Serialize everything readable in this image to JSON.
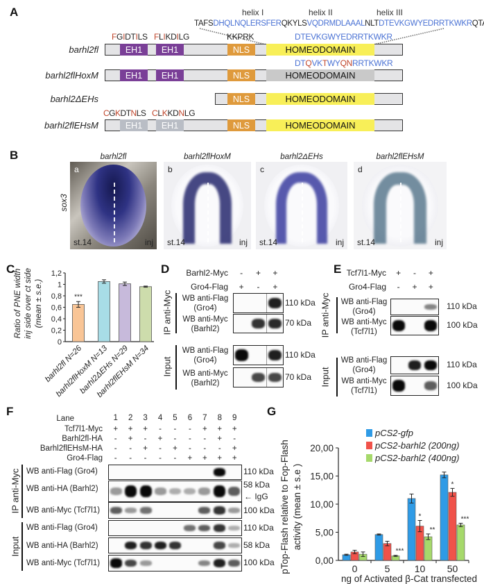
{
  "colors": {
    "black": "#222222",
    "blue": "#4a72d4",
    "red": "#c0452b",
    "eh1": "#7a3f97",
    "eh1_mut": "#b9bdc5",
    "nls": "#df9a3c",
    "hd": "#f8ef58",
    "hd_mut": "#c9c9c9"
  },
  "panel_a": {
    "label": "A",
    "helix_labels": [
      "helix I",
      "helix II",
      "helix III"
    ],
    "sequence": [
      {
        "t": "TAFS",
        "c": "black"
      },
      {
        "t": "DHQLNQLERSFER",
        "c": "blue"
      },
      {
        "t": "QKYLS",
        "c": "black"
      },
      {
        "t": "VQDRMDLAAAL",
        "c": "blue"
      },
      {
        "t": "NLT",
        "c": "black"
      },
      {
        "t": "DTEVKGWYEDRRTKWKR",
        "c": "blue"
      },
      {
        "t": "QTA",
        "c": "black"
      }
    ],
    "eh1_wt_1": [
      {
        "t": "F",
        "c": "red"
      },
      {
        "t": "G",
        "c": "black"
      },
      {
        "t": "I",
        "c": "red"
      },
      {
        "t": "DT",
        "c": "black"
      },
      {
        "t": "I",
        "c": "red"
      },
      {
        "t": "LS",
        "c": "black"
      }
    ],
    "eh1_wt_2": [
      {
        "t": "F",
        "c": "red"
      },
      {
        "t": "L",
        "c": "black"
      },
      {
        "t": "I",
        "c": "red"
      },
      {
        "t": "KD",
        "c": "black"
      },
      {
        "t": "I",
        "c": "red"
      },
      {
        "t": "LG",
        "c": "black"
      }
    ],
    "nls_seq": "KKPRK",
    "helix3_wt": [
      {
        "t": "DTEVKGWYEDRRTKWKR",
        "c": "blue"
      }
    ],
    "helix3_mut": [
      {
        "t": "DT",
        "c": "blue"
      },
      {
        "t": "Q",
        "c": "red"
      },
      {
        "t": "VK",
        "c": "blue"
      },
      {
        "t": "T",
        "c": "red"
      },
      {
        "t": "WY",
        "c": "blue"
      },
      {
        "t": "QN",
        "c": "red"
      },
      {
        "t": "RRTKWKR",
        "c": "blue"
      }
    ],
    "eh1_mut_1": [
      {
        "t": "C",
        "c": "red"
      },
      {
        "t": "G",
        "c": "black"
      },
      {
        "t": "K",
        "c": "red"
      },
      {
        "t": "DT",
        "c": "black"
      },
      {
        "t": "N",
        "c": "red"
      },
      {
        "t": "LS",
        "c": "black"
      }
    ],
    "eh1_mut_2": [
      {
        "t": "C",
        "c": "red"
      },
      {
        "t": "L",
        "c": "black"
      },
      {
        "t": "K",
        "c": "red"
      },
      {
        "t": "KD",
        "c": "black"
      },
      {
        "t": "N",
        "c": "red"
      },
      {
        "t": "LG",
        "c": "black"
      }
    ],
    "domain_labels": {
      "eh1": "EH1",
      "nls": "NLS",
      "hd": "HOMEODOMAIN"
    },
    "constructs": [
      {
        "name": "barhl2fl"
      },
      {
        "name": "barhl2flHoxM"
      },
      {
        "name": "barhl2ΔEHs"
      },
      {
        "name": "barhl2flEHsM"
      }
    ]
  },
  "panel_b": {
    "label": "B",
    "marker": "sox3",
    "images": [
      {
        "title": "barhl2fl",
        "letter": "a",
        "stage": "st.14",
        "side": "inj"
      },
      {
        "title": "barhl2flHoxM",
        "letter": "b",
        "stage": "st.14",
        "side": "inj"
      },
      {
        "title": "barhl2ΔEHs",
        "letter": "c",
        "stage": "st.14",
        "side": "inj"
      },
      {
        "title": "barhl2flEHsM",
        "letter": "d",
        "stage": "st.14",
        "side": "inj"
      }
    ]
  },
  "panel_c": {
    "label": "C"
  },
  "panel_d": {
    "label": "D",
    "rows": [
      {
        "name": "Barhl2-Myc",
        "signs": [
          "-",
          "+",
          "+"
        ]
      },
      {
        "name": "Gro4-Flag",
        "signs": [
          "+",
          "-",
          "+"
        ]
      }
    ],
    "ip_label": "IP anti-Myc",
    "input_label": "Input",
    "blots": [
      {
        "l1": "WB anti-Flag",
        "l2": "(Gro4)",
        "kda": "110 kDa",
        "bands": [
          0,
          0,
          0.9
        ]
      },
      {
        "l1": "WB anti-Myc",
        "l2": "(Barhl2)",
        "kda": "70 kDa",
        "bands": [
          0,
          0.8,
          0.85
        ]
      },
      {
        "l1": "WB anti-Flag",
        "l2": "(Gro4)",
        "kda": "110 kDa",
        "bands": [
          1,
          0,
          0.9
        ]
      },
      {
        "l1": "WB anti-Myc",
        "l2": "(Barhl2)",
        "kda": "70 kDa",
        "bands": [
          0,
          0.7,
          0.7
        ]
      }
    ]
  },
  "panel_e": {
    "label": "E",
    "rows": [
      {
        "name": "Tcf7l1-Myc",
        "signs": [
          "+",
          "-",
          "+"
        ]
      },
      {
        "name": "Gro4-Flag",
        "signs": [
          "-",
          "+",
          "+"
        ]
      }
    ],
    "ip_label": "IP anti-Myc",
    "input_label": "Input",
    "blots": [
      {
        "l1": "WB anti-Flag",
        "l2": "(Gro4)",
        "kda": "110 kDa",
        "bands": [
          0,
          0,
          0.4
        ]
      },
      {
        "l1": "WB anti-Myc",
        "l2": "(Tcf7l1)",
        "kda": "100 kDa",
        "bands": [
          1,
          0,
          1
        ]
      },
      {
        "l1": "WB anti-Flag",
        "l2": "(Gro4)",
        "kda": "110 kDa",
        "bands": [
          0,
          0.9,
          1
        ]
      },
      {
        "l1": "WB anti-Myc",
        "l2": "(Tcf7l1)",
        "kda": "100 kDa",
        "bands": [
          1,
          0,
          0.6
        ]
      }
    ]
  },
  "panel_f": {
    "label": "F",
    "lane_label": "Lane",
    "lanes": [
      "1",
      "2",
      "3",
      "4",
      "5",
      "6",
      "7",
      "8",
      "9"
    ],
    "rows": [
      {
        "name": "Tcf7l1-Myc",
        "signs": [
          "+",
          "+",
          "+",
          "-",
          "-",
          "-",
          "+",
          "+",
          "+"
        ]
      },
      {
        "name": "Barhl2fl-HA",
        "signs": [
          "-",
          "+",
          "-",
          "+",
          "-",
          "-",
          "-",
          "+",
          "-"
        ]
      },
      {
        "name": "Barhl2flEHsM-HA",
        "signs": [
          "-",
          "-",
          "+",
          "-",
          "+",
          "-",
          "-",
          "-",
          "+"
        ]
      },
      {
        "name": "Gro4-Flag",
        "signs": [
          "-",
          "-",
          "-",
          "-",
          "-",
          "+",
          "+",
          "+",
          "+"
        ]
      }
    ],
    "ip_label": "IP anti-Myc",
    "input_label": "Input",
    "igg_label": "IgG",
    "blots": [
      {
        "label": "WB anti-Flag (Gro4)",
        "kda": "110 kDa",
        "bands": [
          0,
          0,
          0,
          0,
          0,
          0,
          0,
          1,
          0
        ]
      },
      {
        "label": "WB anti-HA (Barhl2)",
        "kda": "58 kDa",
        "bands": [
          0.3,
          1,
          1,
          0.3,
          0.2,
          0.2,
          0.3,
          1,
          0.6
        ]
      },
      {
        "label": "WB anti-Myc (Tcf7l1)",
        "kda": "100 kDa",
        "bands": [
          0.6,
          0.3,
          0.5,
          0,
          0,
          0,
          0.6,
          0.8,
          0.3
        ]
      },
      {
        "label": "WB anti-Flag (Gro4)",
        "kda": "110 kDa",
        "bands": [
          0,
          0,
          0,
          0,
          0,
          0.5,
          0.6,
          0.8,
          0.2
        ]
      },
      {
        "label": "WB anti-HA (Barhl2)",
        "kda": "58 kDa",
        "bands": [
          0,
          0.9,
          0.8,
          0.9,
          0.8,
          0,
          0,
          0.7,
          0.2
        ]
      },
      {
        "label": "WB anti-Myc (Tcf7l1)",
        "kda": "100 kDa",
        "bands": [
          1,
          0.7,
          0.3,
          0,
          0,
          0,
          0.4,
          0.9,
          0.6
        ]
      }
    ]
  },
  "panel_g": {
    "label": "G"
  },
  "chart_data": [
    {
      "panel": "C",
      "type": "bar",
      "categories": [
        "barhl2fl N=26",
        "barhl2flHoxM N=13",
        "barhl2ΔEHs N=29",
        "barhl2flEHsM N=34"
      ],
      "values": [
        0.65,
        1.05,
        1.01,
        0.96
      ],
      "errors": [
        0.05,
        0.03,
        0.03,
        0.01
      ],
      "annotations": [
        "***",
        "",
        "",
        ""
      ],
      "bar_colors": [
        "#f9c596",
        "#a8dde7",
        "#c7badb",
        "#cddcac"
      ],
      "ylabel_lines": [
        "Ratio of PNE width",
        "inj side over ct side",
        "(mean ± s.e.)"
      ],
      "ylim": [
        0,
        1.2
      ],
      "yticks": [
        0,
        0.2,
        0.4,
        0.6,
        0.8,
        1,
        1.2
      ],
      "ytick_labels": [
        "0",
        "0,2",
        "0,4",
        "0,6",
        "0,8",
        "1",
        "1,2"
      ]
    },
    {
      "panel": "G",
      "type": "bar",
      "categories": [
        "0",
        "5",
        "10",
        "50"
      ],
      "series": [
        {
          "name": "pCS2-gfp",
          "color": "#2f9be6",
          "values": [
            1.0,
            4.6,
            11.0,
            15.2
          ],
          "errors": [
            0.1,
            0.1,
            0.8,
            0.5
          ],
          "stars": [
            "",
            "",
            "",
            ""
          ]
        },
        {
          "name": "pCS2-barhl2 (200ng)",
          "color": "#f0524a",
          "values": [
            1.5,
            3.0,
            6.1,
            12.1
          ],
          "errors": [
            0.3,
            0.4,
            1.0,
            0.7
          ],
          "stars": [
            "",
            "",
            "*",
            "*"
          ]
        },
        {
          "name": "pCS2-barhl2 (400ng)",
          "color": "#a6d96b",
          "values": [
            1.1,
            0.8,
            4.2,
            6.3
          ],
          "errors": [
            0.4,
            0.1,
            0.5,
            0.3
          ],
          "stars": [
            "",
            "***",
            "**",
            "***"
          ]
        }
      ],
      "xlabel": "ng of Activated β-Cat transfected",
      "ylabel_lines": [
        "pTop-Flash relative to Fop-Flash",
        "activity (mean ± s.e )"
      ],
      "ylim": [
        0,
        20
      ],
      "yticks": [
        0,
        5,
        10,
        15,
        20
      ],
      "ytick_labels": [
        "0,00",
        "5,00",
        "10,00",
        "15,00",
        "20,00"
      ],
      "legend_position": "top-right"
    }
  ]
}
